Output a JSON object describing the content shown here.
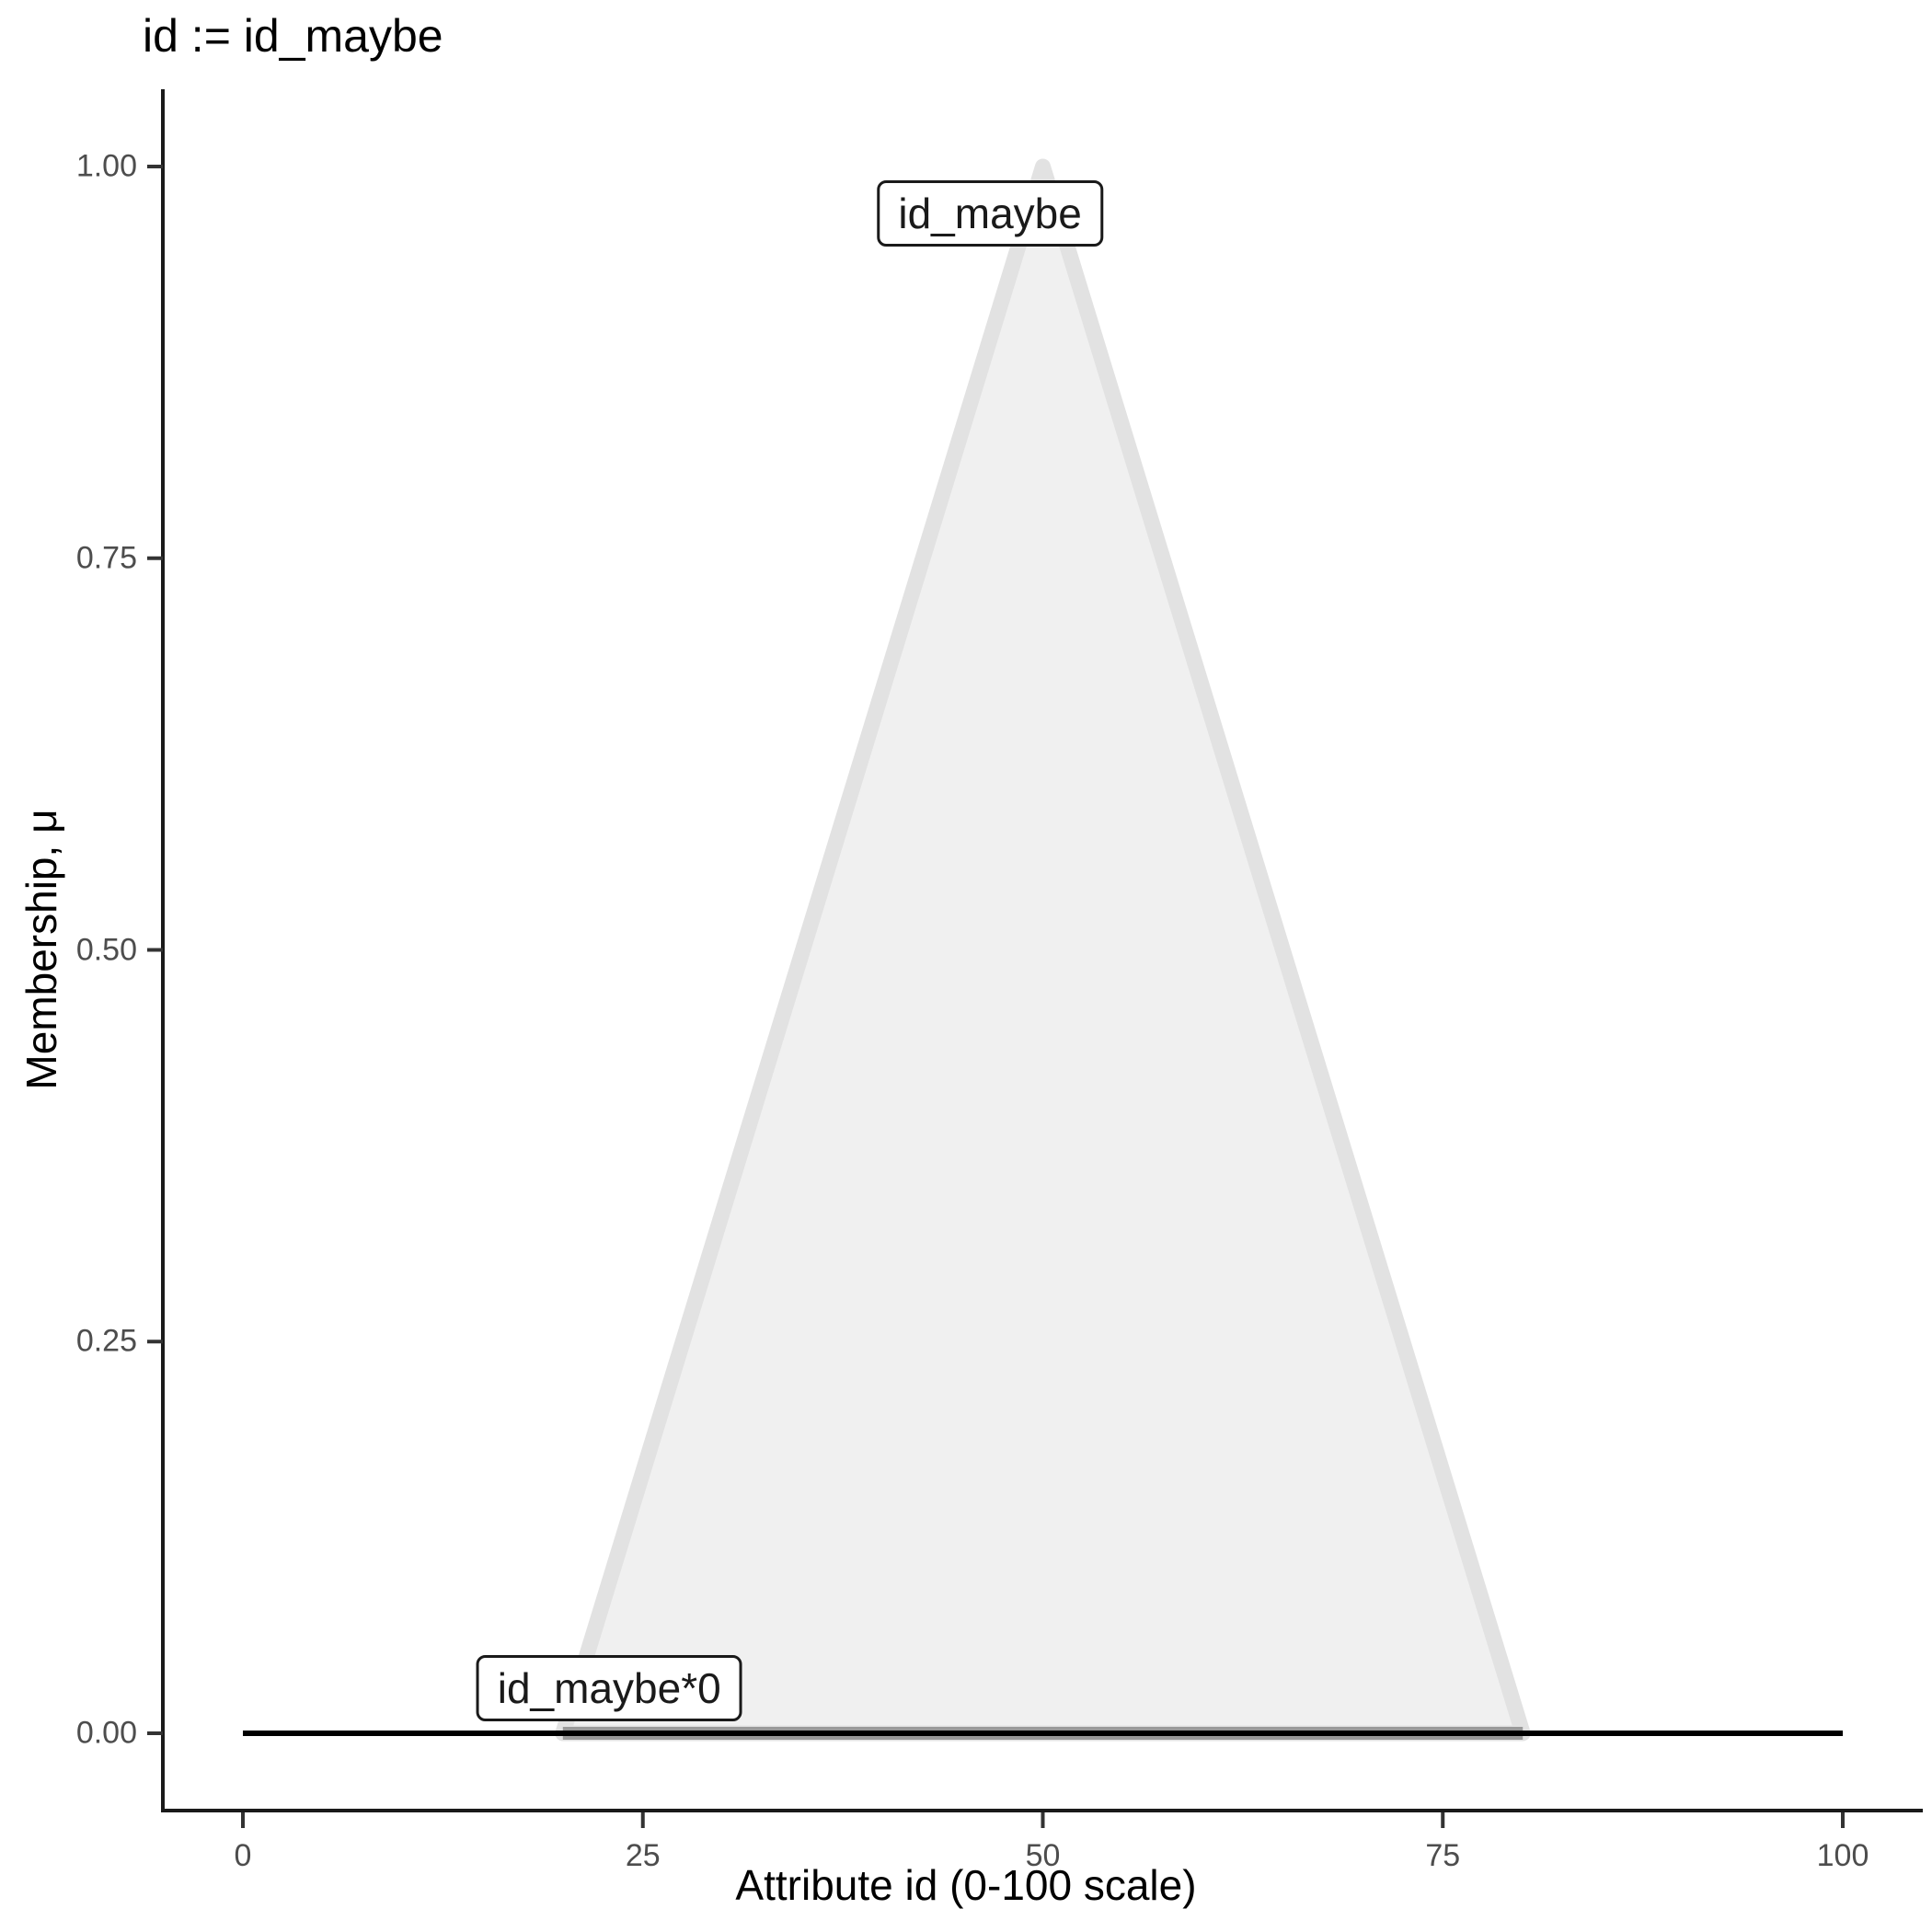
{
  "chart_data": {
    "type": "area",
    "title": "id := id_maybe",
    "xlabel": "Attribute id (0-100 scale)",
    "ylabel": "Membership, μ",
    "xlim": [
      0,
      100
    ],
    "ylim": [
      0.0,
      1.0
    ],
    "grid": "off",
    "legend": "none",
    "x_ticks": [
      {
        "label": "0",
        "value": 0
      },
      {
        "label": "25",
        "value": 25
      },
      {
        "label": "50",
        "value": 50
      },
      {
        "label": "75",
        "value": 75
      },
      {
        "label": "100",
        "value": 100
      }
    ],
    "y_ticks": [
      {
        "label": "0.00",
        "value": 0.0
      },
      {
        "label": "0.25",
        "value": 0.25
      },
      {
        "label": "0.50",
        "value": 0.5
      },
      {
        "label": "0.75",
        "value": 0.75
      },
      {
        "label": "1.00",
        "value": 1.0
      }
    ],
    "series": [
      {
        "name": "id_maybe",
        "kind": "polygon",
        "points": [
          [
            20,
            0
          ],
          [
            50,
            1
          ],
          [
            80,
            0
          ]
        ],
        "fill": "#F0F0F0",
        "stroke": "#E2E2E2",
        "stroke_width": 17
      },
      {
        "name": "id_maybe*0",
        "kind": "line",
        "points": [
          [
            20,
            0
          ],
          [
            80,
            0
          ]
        ],
        "stroke": "#999999",
        "stroke_width": 14
      },
      {
        "name": "baseline",
        "kind": "line",
        "points": [
          [
            0,
            0
          ],
          [
            100,
            0
          ]
        ],
        "stroke": "#000000",
        "stroke_width": 6
      }
    ],
    "annotations": [
      {
        "label": "id_maybe",
        "x": 46.7,
        "y": 0.97
      },
      {
        "label": "id_maybe*0",
        "x": 22.9,
        "y": 0.029
      }
    ],
    "colors": {
      "axis_line": "#1a1a1a",
      "tick_mark": "#333333",
      "tick_label": "#4D4D4D",
      "background": "#ffffff"
    }
  }
}
